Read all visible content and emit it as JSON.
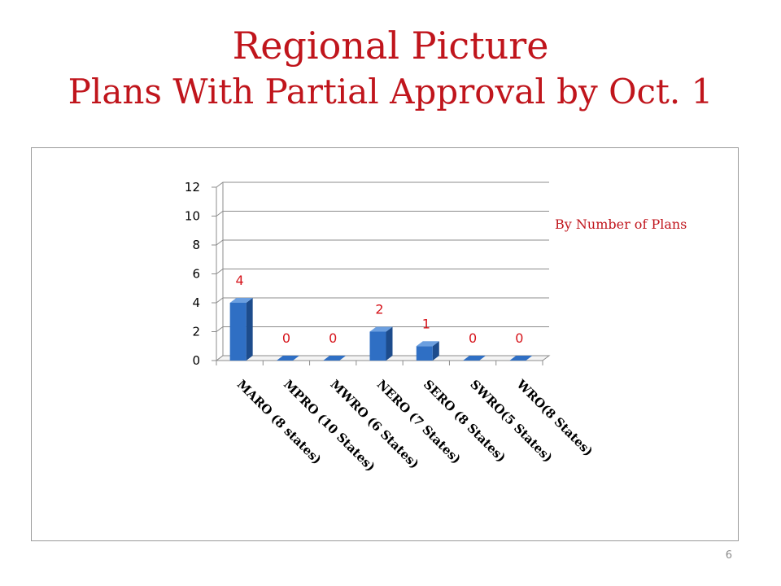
{
  "slide": {
    "title_line1": "Regional Picture",
    "title_line2": "Plans With Partial Approval by Oct. 1",
    "annotation": "By Number of Plans",
    "page_number": "6"
  },
  "colors": {
    "title": "#c0151c",
    "bar_front": "#2f6fc4",
    "bar_side": "#1d4c8c",
    "bar_top": "#6b9fe0",
    "data_label": "#d6141b"
  },
  "chart_data": {
    "type": "bar",
    "style": "3d-column",
    "categories": [
      "MARO (8 states)",
      "MPRO (10 States)",
      "MWRO (6 States)",
      "NERO (7 States)",
      "SERO (8 States)",
      "SWRO(5 States)",
      "WRO(8 States)"
    ],
    "values": [
      4,
      0,
      0,
      2,
      1,
      0,
      0
    ],
    "data_labels": [
      "4",
      "0",
      "0",
      "2",
      "1",
      "0",
      "0"
    ],
    "ylim": [
      0,
      12
    ],
    "yticks": [
      0,
      2,
      4,
      6,
      8,
      10,
      12
    ],
    "ytick_labels": [
      "0",
      "2",
      "4",
      "6",
      "8",
      "10",
      "12"
    ],
    "grid": true,
    "legend": "none",
    "title": "",
    "xlabel": "",
    "ylabel": ""
  }
}
